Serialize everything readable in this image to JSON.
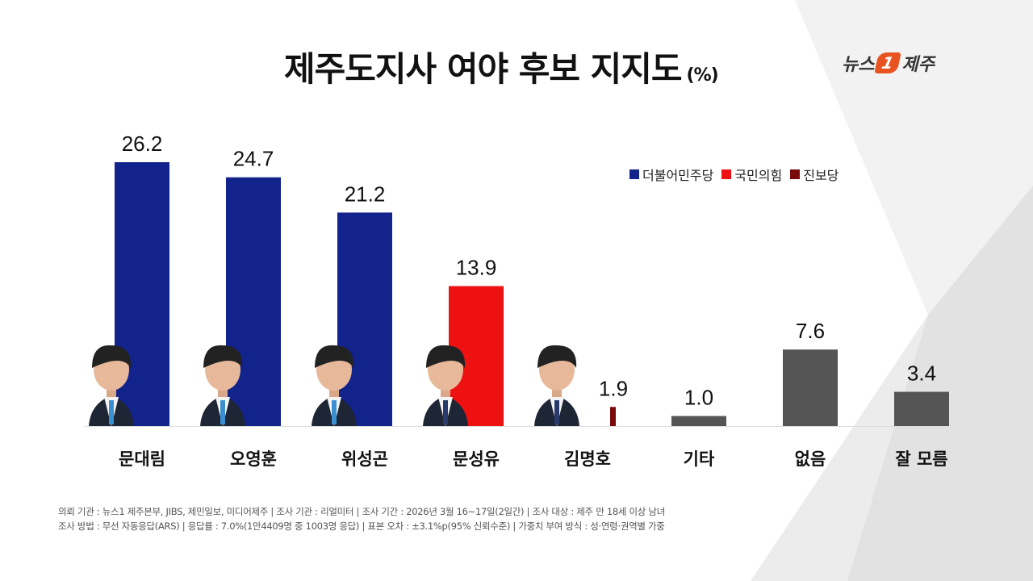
{
  "title": "제주도지사 여야 후보 지지도",
  "unit": "(%)",
  "logo": {
    "left": "뉴스",
    "mark": "1",
    "right": "제주"
  },
  "legend": [
    {
      "label": "더불어민주당",
      "color": "#13238c"
    },
    {
      "label": "국민의힘",
      "color": "#ee1111"
    },
    {
      "label": "진보당",
      "color": "#7a0a0a"
    }
  ],
  "chart_data": {
    "type": "bar",
    "title": "제주도지사 여야 후보 지지도",
    "unit": "%",
    "categories": [
      "문대림",
      "오영훈",
      "위성곤",
      "문성유",
      "김명호",
      "기타",
      "없음",
      "잘 모름"
    ],
    "values": [
      26.2,
      24.7,
      21.2,
      13.9,
      1.9,
      1.0,
      7.6,
      3.4
    ],
    "value_labels": [
      "26.2",
      "24.7",
      "21.2",
      "13.9",
      "1.9",
      "1.0",
      "7.6",
      "3.4"
    ],
    "colors": [
      "#13238c",
      "#13238c",
      "#13238c",
      "#ee1111",
      "#7a0a0a",
      "#555555",
      "#555555",
      "#555555"
    ],
    "has_photo": [
      true,
      true,
      true,
      true,
      true,
      false,
      false,
      false
    ],
    "ylim": [
      0,
      28
    ],
    "grid": false,
    "legend_position": "top-right"
  },
  "footer": {
    "line1": "의뢰 기관 : 뉴스1 제주본부, JIBS, 제민일보, 미디어제주 | 조사 기관 : 리얼미터 | 조사 기간 : 2026년 3월 16~17일(2일간) | 조사 대상 : 제주 만 18세 이상 남녀",
    "line2": "조사 방법 : 무선 자동응답(ARS) | 응답률 : 7.0%(1만4409명 중 1003명 응답) | 표본 오차 : ±3.1%p(95% 신뢰수준) | 가중치 부여 방식 : 성·연령·권역별 가중"
  }
}
